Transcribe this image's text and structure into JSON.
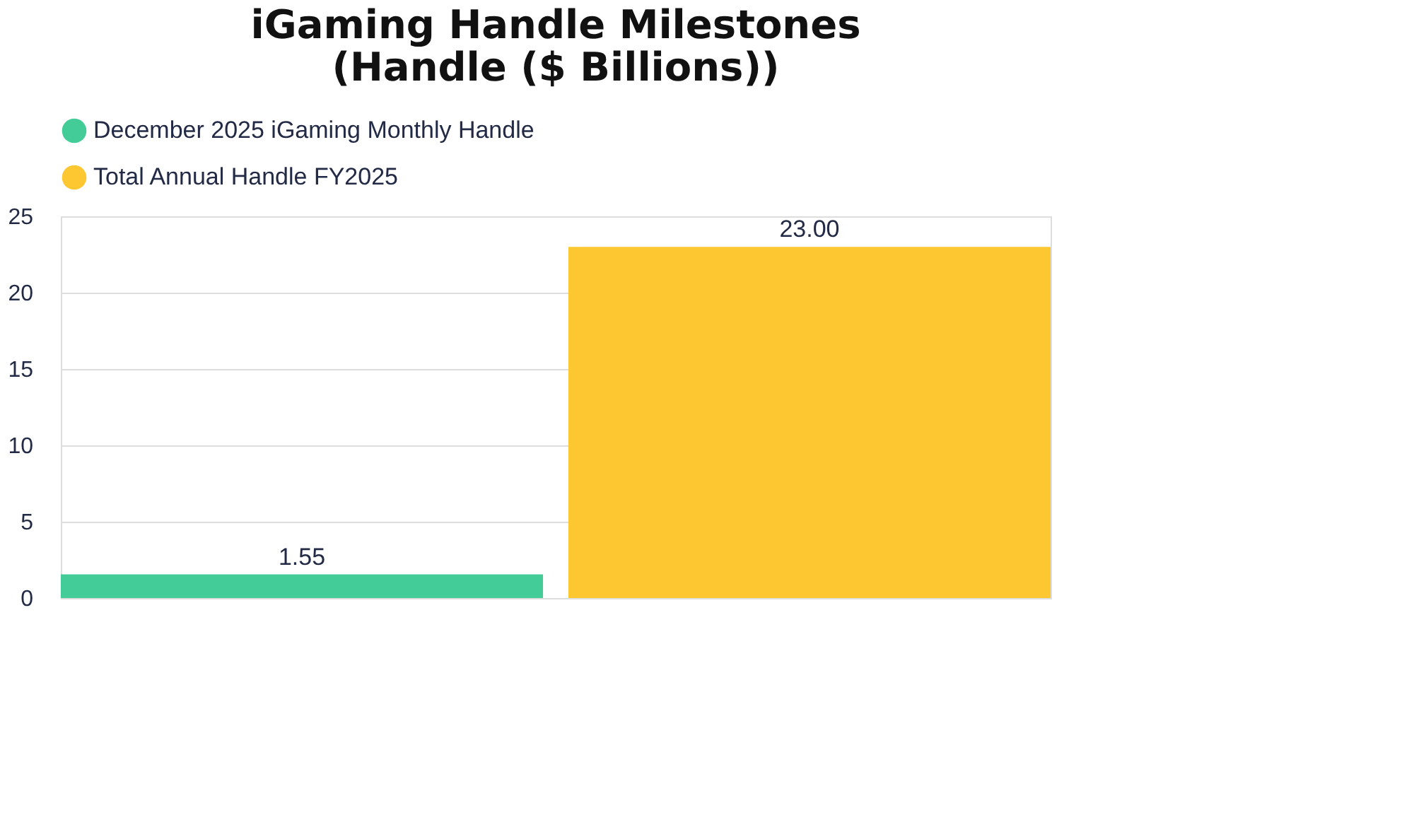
{
  "chart_data": {
    "type": "bar",
    "title": "iGaming Handle Milestones\n(Handle ($ Billions))",
    "categories": [
      null,
      null
    ],
    "series": [
      {
        "name": "December 2025 iGaming Monthly Handle",
        "color": "#43cc98",
        "values": [
          1.55,
          null
        ],
        "value_labels": [
          "1.55",
          null
        ]
      },
      {
        "name": "Total Annual Handle FY2025",
        "color": "#fdc731",
        "values": [
          null,
          23.0
        ],
        "value_labels": [
          null,
          "23.00"
        ]
      }
    ],
    "ylim": [
      0,
      25
    ],
    "yticks": [
      0,
      5,
      10,
      15,
      20,
      25
    ],
    "grid": "y",
    "legend": "top"
  }
}
